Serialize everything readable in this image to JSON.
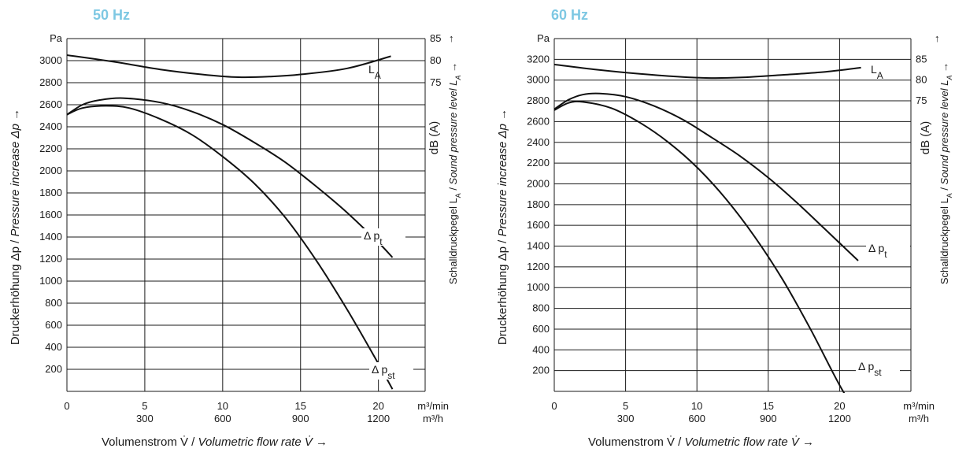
{
  "chart_data": [
    {
      "type": "line",
      "title": "50 Hz",
      "title_color": "#7ec8e3",
      "xlabel_de": "Volumenstrom V̇ / ",
      "xlabel_en": "Volumetric flow rate V̇ →",
      "x_unit_top": "m³/min",
      "x_unit_bottom": "m³/h",
      "xlim": [
        0,
        23
      ],
      "x_ticks": [
        0,
        5,
        10,
        15,
        20
      ],
      "x_tick_labels": [
        "0",
        "5",
        "10",
        "15",
        "20"
      ],
      "x_ticks_h": [
        300,
        600,
        900,
        1200
      ],
      "ylabel_de": "Druckerhöhung Δp / ",
      "ylabel_en": "Pressure increase Δp  →",
      "y_unit": "Pa",
      "ylim": [
        0,
        3200
      ],
      "y_ticks": [
        200,
        400,
        600,
        800,
        1000,
        1200,
        1400,
        1600,
        1800,
        2000,
        2200,
        2400,
        2600,
        2800,
        3000
      ],
      "y2label_unit": "dB (A)",
      "y2label_de": "Schalldruckpegel L",
      "y2label_en": "Sound pressure level L",
      "y2_ticks": [
        {
          "label": "85",
          "pa": 3200
        },
        {
          "label": "80",
          "pa": 3000
        },
        {
          "label": "75",
          "pa": 2800
        }
      ],
      "grid": true,
      "series": [
        {
          "name": "L",
          "name_sub": "A",
          "x": [
            0,
            3,
            6,
            9,
            11,
            13,
            15,
            18,
            20.8
          ],
          "y": [
            3050,
            2990,
            2920,
            2870,
            2850,
            2855,
            2875,
            2930,
            3040
          ]
        },
        {
          "name": "Δ p",
          "name_sub": "t",
          "x": [
            0,
            1,
            2,
            3.6,
            6,
            8,
            10,
            12,
            14,
            16,
            18,
            20,
            20.9
          ],
          "y": [
            2510,
            2600,
            2640,
            2660,
            2620,
            2540,
            2420,
            2260,
            2080,
            1860,
            1620,
            1350,
            1215
          ]
        },
        {
          "name": "Δ p",
          "name_sub": "st",
          "x": [
            0,
            1,
            2.5,
            4,
            6,
            8,
            10,
            12,
            14,
            16,
            18,
            20,
            20.9
          ],
          "y": [
            2510,
            2570,
            2590,
            2570,
            2470,
            2330,
            2130,
            1890,
            1580,
            1190,
            740,
            250,
            20
          ]
        }
      ]
    },
    {
      "type": "line",
      "title": "60 Hz",
      "title_color": "#7ec8e3",
      "xlabel_de": "Volumenstrom V̇ / ",
      "xlabel_en": "Volumetric flow rate V̇ →",
      "x_unit_top": "m³/min",
      "x_unit_bottom": "m³/h",
      "xlim": [
        0,
        25
      ],
      "x_ticks": [
        0,
        5,
        10,
        15,
        20
      ],
      "x_tick_labels": [
        "0",
        "5",
        "10",
        "15",
        "20"
      ],
      "x_ticks_h": [
        300,
        600,
        900,
        1200
      ],
      "ylabel_de": "Druckerhöhung Δp / ",
      "ylabel_en": "Pressure increase Δp  →",
      "y_unit": "Pa",
      "ylim": [
        0,
        3400
      ],
      "y_ticks": [
        200,
        400,
        600,
        800,
        1000,
        1200,
        1400,
        1600,
        1800,
        2000,
        2200,
        2400,
        2600,
        2800,
        3000,
        3200
      ],
      "y2label_unit": "dB (A)",
      "y2label_de": "Schalldruckpegel L",
      "y2label_en": "Sound pressure level L",
      "y2_ticks": [
        {
          "label": "85",
          "pa": 3200
        },
        {
          "label": "80",
          "pa": 3000
        },
        {
          "label": "75",
          "pa": 2800
        }
      ],
      "grid": true,
      "series": [
        {
          "name": "L",
          "name_sub": "A",
          "x": [
            0,
            3,
            6,
            9,
            11,
            13,
            16,
            19,
            21.5
          ],
          "y": [
            3150,
            3100,
            3060,
            3030,
            3020,
            3025,
            3050,
            3080,
            3120
          ]
        },
        {
          "name": "Δ p",
          "name_sub": "t",
          "x": [
            0,
            1,
            2,
            3.2,
            5,
            7,
            9,
            11,
            13,
            15,
            17,
            19,
            21.3
          ],
          "y": [
            2720,
            2810,
            2860,
            2870,
            2840,
            2750,
            2620,
            2450,
            2270,
            2060,
            1820,
            1560,
            1260
          ]
        },
        {
          "name": "Δ p",
          "name_sub": "st",
          "x": [
            0,
            1,
            2,
            4,
            6,
            8,
            10,
            12,
            14,
            16,
            18,
            20,
            21.6
          ],
          "y": [
            2710,
            2780,
            2790,
            2730,
            2590,
            2400,
            2160,
            1860,
            1500,
            1080,
            590,
            60,
            -300
          ]
        }
      ]
    }
  ]
}
